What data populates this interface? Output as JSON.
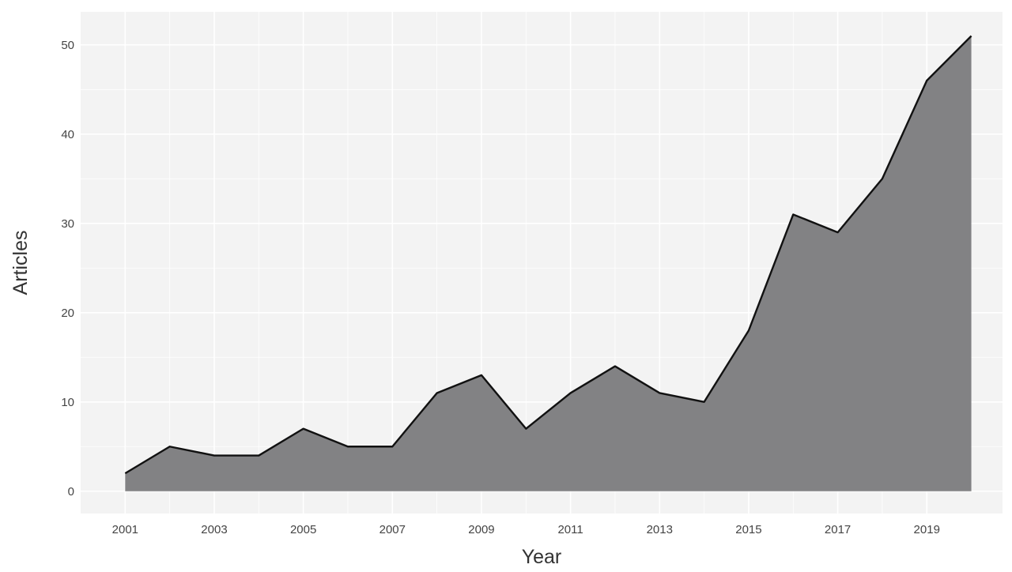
{
  "chart_data": {
    "type": "area",
    "title": "",
    "xlabel": "Year",
    "ylabel": "Articles",
    "x": [
      2001,
      2002,
      2003,
      2004,
      2005,
      2006,
      2007,
      2008,
      2009,
      2010,
      2011,
      2012,
      2013,
      2014,
      2015,
      2016,
      2017,
      2018,
      2019,
      2020
    ],
    "series": [
      {
        "values": [
          2,
          5,
          4,
          4,
          7,
          5,
          5,
          11,
          13,
          7,
          11,
          14,
          11,
          10,
          18,
          31,
          29,
          35,
          46,
          51
        ]
      }
    ],
    "x_tick_labels": [
      "2001",
      "2003",
      "2005",
      "2007",
      "2009",
      "2011",
      "2013",
      "2015",
      "2017",
      "2019"
    ],
    "y_tick_labels": [
      "0",
      "10",
      "20",
      "30",
      "40",
      "50"
    ],
    "xlim": [
      2000.0,
      2020.7
    ],
    "ylim": [
      -2.5,
      53.7
    ],
    "grid": true,
    "legend": "none",
    "colors": {
      "panel_background": "#f3f3f3",
      "grid": "#ffffff",
      "area_fill": "#828284",
      "line": "#111111",
      "axis_text": "#444444",
      "axis_title": "#333333"
    }
  }
}
